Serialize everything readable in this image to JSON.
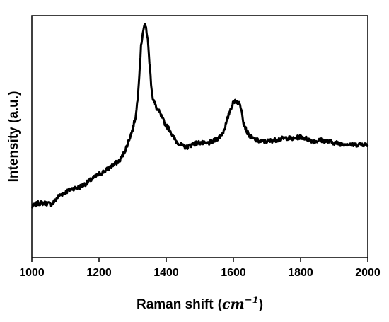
{
  "chart_data": {
    "type": "line",
    "title": "",
    "xlabel": "Raman shift",
    "xlabel_unit_open": "(",
    "xlabel_unit_base": "cm",
    "xlabel_unit_exp": "−1",
    "xlabel_unit_close": ")",
    "ylabel": "Intensity (a.u.)",
    "xlim": [
      1000,
      2000
    ],
    "ylim": [
      0,
      1
    ],
    "x_ticks": [
      "1000",
      "1200",
      "1400",
      "1600",
      "1800",
      "2000"
    ],
    "y_ticks": [],
    "grid": false,
    "legend": "none",
    "series": [
      {
        "color": "#000000",
        "x": [
          1000,
          1020,
          1040,
          1060,
          1080,
          1100,
          1120,
          1140,
          1160,
          1180,
          1200,
          1220,
          1240,
          1260,
          1270,
          1280,
          1290,
          1300,
          1310,
          1315,
          1320,
          1325,
          1330,
          1335,
          1340,
          1345,
          1350,
          1355,
          1360,
          1370,
          1380,
          1390,
          1400,
          1410,
          1420,
          1430,
          1440,
          1450,
          1460,
          1480,
          1500,
          1520,
          1540,
          1560,
          1570,
          1580,
          1590,
          1600,
          1605,
          1610,
          1615,
          1620,
          1625,
          1630,
          1640,
          1650,
          1660,
          1680,
          1700,
          1720,
          1740,
          1760,
          1780,
          1800,
          1820,
          1840,
          1860,
          1880,
          1900,
          1920,
          1940,
          1960,
          1980,
          2000
        ],
        "y": [
          0.21,
          0.225,
          0.225,
          0.22,
          0.255,
          0.27,
          0.285,
          0.29,
          0.305,
          0.325,
          0.345,
          0.36,
          0.38,
          0.4,
          0.42,
          0.45,
          0.49,
          0.53,
          0.59,
          0.66,
          0.76,
          0.87,
          0.93,
          0.96,
          0.95,
          0.9,
          0.81,
          0.72,
          0.66,
          0.62,
          0.6,
          0.57,
          0.545,
          0.53,
          0.5,
          0.48,
          0.47,
          0.46,
          0.455,
          0.47,
          0.475,
          0.47,
          0.48,
          0.5,
          0.52,
          0.56,
          0.61,
          0.64,
          0.65,
          0.645,
          0.64,
          0.63,
          0.61,
          0.56,
          0.52,
          0.5,
          0.49,
          0.48,
          0.48,
          0.485,
          0.49,
          0.495,
          0.49,
          0.5,
          0.49,
          0.48,
          0.485,
          0.48,
          0.475,
          0.47,
          0.47,
          0.465,
          0.47,
          0.465
        ]
      }
    ]
  }
}
